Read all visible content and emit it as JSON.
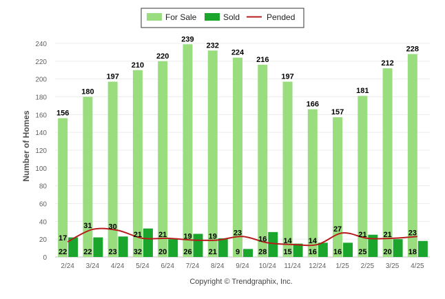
{
  "chart_data": {
    "type": "bar",
    "title": "",
    "xlabel": "",
    "ylabel": "Number of Homes",
    "ylim": [
      0,
      240
    ],
    "yticks": [
      0,
      20,
      40,
      60,
      80,
      100,
      120,
      140,
      160,
      180,
      200,
      220,
      240
    ],
    "grid": true,
    "legend_position": "top-center",
    "categories": [
      "2/24",
      "3/24",
      "4/24",
      "5/24",
      "6/24",
      "7/24",
      "8/24",
      "9/24",
      "10/24",
      "11/24",
      "12/24",
      "1/25",
      "2/25",
      "3/25",
      "4/25"
    ],
    "series": [
      {
        "name": "For Sale",
        "kind": "bar",
        "color": "#99dd7f",
        "values": [
          156,
          180,
          197,
          210,
          220,
          239,
          232,
          224,
          216,
          197,
          166,
          157,
          181,
          212,
          228
        ]
      },
      {
        "name": "Sold",
        "kind": "bar",
        "color": "#1aa52d",
        "values": [
          22,
          22,
          23,
          32,
          20,
          26,
          21,
          9,
          28,
          15,
          16,
          16,
          25,
          20,
          18
        ]
      },
      {
        "name": "Pended",
        "kind": "line",
        "color": "#b71c1c",
        "values": [
          17,
          31,
          30,
          21,
          21,
          19,
          19,
          23,
          16,
          14,
          14,
          27,
          21,
          21,
          23
        ]
      }
    ],
    "credit": "Copyright © Trendgraphix, Inc."
  }
}
